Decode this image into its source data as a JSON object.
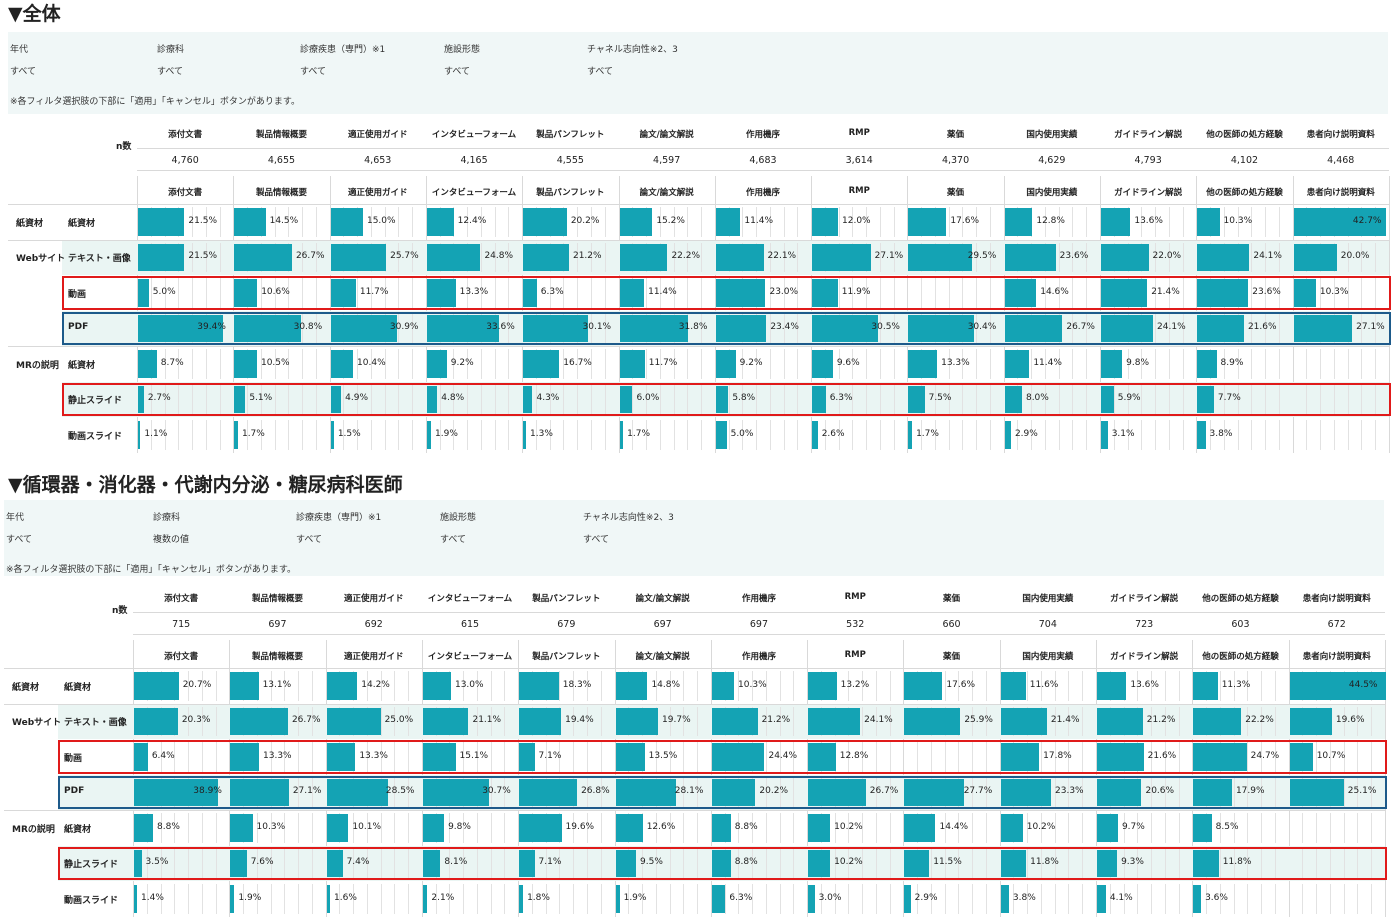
{
  "columns": [
    "添付文書",
    "製品情報概要",
    "適正使用ガイド",
    "インタビューフォーム",
    "製品パンフレット",
    "論文/論文解説",
    "作用機序",
    "RMP",
    "薬価",
    "国内使用実績",
    "ガイドライン解説",
    "他の医師の処方経験",
    "患者向け説明資料"
  ],
  "n_label": "n数",
  "row_groups": [
    {
      "group": "紙資材",
      "name": "紙資材"
    },
    {
      "group": "Webサイト",
      "name": "テキスト・画像"
    },
    {
      "group": "",
      "name": "動画"
    },
    {
      "group": "",
      "name": "PDF"
    },
    {
      "group": "MRの説明",
      "name": "紙資材"
    },
    {
      "group": "",
      "name": "静止スライド"
    },
    {
      "group": "",
      "name": "動画スライド"
    }
  ],
  "filter_labels": [
    "年代",
    "診療科",
    "診療疾患（専門）※1",
    "施設形態",
    "チャネル志向性※2、3"
  ],
  "filter_note": "※各フィルタ選択肢の下部に「適用」「キャンセル」ボタンがあります。",
  "sections": [
    {
      "title": "▼全体",
      "filter_values": [
        "すべて",
        "すべて",
        "すべて",
        "すべて",
        "すべて"
      ],
      "n": [
        "4,760",
        "4,655",
        "4,653",
        "4,165",
        "4,555",
        "4,597",
        "4,683",
        "3,614",
        "4,370",
        "4,629",
        "4,793",
        "4,102",
        "4,468"
      ]
    },
    {
      "title": "▼循環器・消化器・代謝内分泌・糖尿病科医師",
      "filter_values": [
        "すべて",
        "複数の値",
        "すべて",
        "すべて",
        "すべて"
      ],
      "n": [
        "715",
        "697",
        "692",
        "615",
        "679",
        "697",
        "697",
        "532",
        "660",
        "704",
        "723",
        "603",
        "672"
      ]
    }
  ],
  "chart_data": [
    {
      "type": "bar",
      "title": "▼全体",
      "categories": [
        "添付文書",
        "製品情報概要",
        "適正使用ガイド",
        "インタビューフォーム",
        "製品パンフレット",
        "論文/論文解説",
        "作用機序",
        "RMP",
        "薬価",
        "国内使用実績",
        "ガイドライン解説",
        "他の医師の処方経験",
        "患者向け説明資料"
      ],
      "series": [
        {
          "name": "紙資材/紙資材",
          "values": [
            "21.5%",
            "14.5%",
            "15.0%",
            "12.4%",
            "20.2%",
            "15.2%",
            "11.4%",
            "12.0%",
            "17.6%",
            "12.8%",
            "13.6%",
            "10.3%",
            "42.7%"
          ]
        },
        {
          "name": "Webサイト/テキスト・画像",
          "values": [
            "21.5%",
            "26.7%",
            "25.7%",
            "24.8%",
            "21.2%",
            "22.2%",
            "22.1%",
            "27.1%",
            "29.5%",
            "23.6%",
            "22.0%",
            "24.1%",
            "20.0%"
          ]
        },
        {
          "name": "Webサイト/動画",
          "values": [
            "5.0%",
            "10.6%",
            "11.7%",
            "13.3%",
            "6.3%",
            "11.4%",
            "23.0%",
            "11.9%",
            "",
            "14.6%",
            "21.4%",
            "23.6%",
            "10.3%"
          ]
        },
        {
          "name": "Webサイト/PDF",
          "values": [
            "39.4%",
            "30.8%",
            "30.9%",
            "33.6%",
            "30.1%",
            "31.8%",
            "23.4%",
            "30.5%",
            "30.4%",
            "26.7%",
            "24.1%",
            "21.6%",
            "27.1%"
          ]
        },
        {
          "name": "MRの説明/紙資材",
          "values": [
            "8.7%",
            "10.5%",
            "10.4%",
            "9.2%",
            "16.7%",
            "11.7%",
            "9.2%",
            "9.6%",
            "13.3%",
            "11.4%",
            "9.8%",
            "8.9%",
            ""
          ]
        },
        {
          "name": "MRの説明/静止スライド",
          "values": [
            "2.7%",
            "5.1%",
            "4.9%",
            "4.8%",
            "4.3%",
            "6.0%",
            "5.8%",
            "6.3%",
            "7.5%",
            "8.0%",
            "5.9%",
            "7.7%",
            ""
          ]
        },
        {
          "name": "MRの説明/動画スライド",
          "values": [
            "1.1%",
            "1.7%",
            "1.5%",
            "1.9%",
            "1.3%",
            "1.7%",
            "5.0%",
            "2.6%",
            "1.7%",
            "2.9%",
            "3.1%",
            "3.8%",
            ""
          ]
        }
      ]
    },
    {
      "type": "bar",
      "title": "▼循環器・消化器・代謝内分泌・糖尿病科医師",
      "categories": [
        "添付文書",
        "製品情報概要",
        "適正使用ガイド",
        "インタビューフォーム",
        "製品パンフレット",
        "論文/論文解説",
        "作用機序",
        "RMP",
        "薬価",
        "国内使用実績",
        "ガイドライン解説",
        "他の医師の処方経験",
        "患者向け説明資料"
      ],
      "series": [
        {
          "name": "紙資材/紙資材",
          "values": [
            "20.7%",
            "13.1%",
            "14.2%",
            "13.0%",
            "18.3%",
            "14.8%",
            "10.3%",
            "13.2%",
            "17.6%",
            "11.6%",
            "13.6%",
            "11.3%",
            "44.5%"
          ]
        },
        {
          "name": "Webサイト/テキスト・画像",
          "values": [
            "20.3%",
            "26.7%",
            "25.0%",
            "21.1%",
            "19.4%",
            "19.7%",
            "21.2%",
            "24.1%",
            "25.9%",
            "21.4%",
            "21.2%",
            "22.2%",
            "19.6%"
          ]
        },
        {
          "name": "Webサイト/動画",
          "values": [
            "6.4%",
            "13.3%",
            "13.3%",
            "15.1%",
            "7.1%",
            "13.5%",
            "24.4%",
            "12.8%",
            "",
            "17.8%",
            "21.6%",
            "24.7%",
            "10.7%"
          ]
        },
        {
          "name": "Webサイト/PDF",
          "values": [
            "38.9%",
            "27.1%",
            "28.5%",
            "30.7%",
            "26.8%",
            "28.1%",
            "20.2%",
            "26.7%",
            "27.7%",
            "23.3%",
            "20.6%",
            "17.9%",
            "25.1%"
          ]
        },
        {
          "name": "MRの説明/紙資材",
          "values": [
            "8.8%",
            "10.3%",
            "10.1%",
            "9.8%",
            "19.6%",
            "12.6%",
            "8.8%",
            "10.2%",
            "14.4%",
            "10.2%",
            "9.7%",
            "8.5%",
            ""
          ]
        },
        {
          "name": "MRの説明/静止スライド",
          "values": [
            "3.5%",
            "7.6%",
            "7.4%",
            "8.1%",
            "7.1%",
            "9.5%",
            "8.8%",
            "10.2%",
            "11.5%",
            "11.8%",
            "9.3%",
            "11.8%",
            ""
          ]
        },
        {
          "name": "MRの説明/動画スライド",
          "values": [
            "1.4%",
            "1.9%",
            "1.6%",
            "2.1%",
            "1.8%",
            "1.9%",
            "6.3%",
            "3.0%",
            "2.9%",
            "3.8%",
            "4.1%",
            "3.6%",
            ""
          ]
        }
      ]
    }
  ],
  "colors": {
    "bar": "#14a3b4",
    "stripe": "#eaf5f3",
    "highlight_red": "#e01a1a",
    "highlight_blue": "#1d5a8a"
  }
}
